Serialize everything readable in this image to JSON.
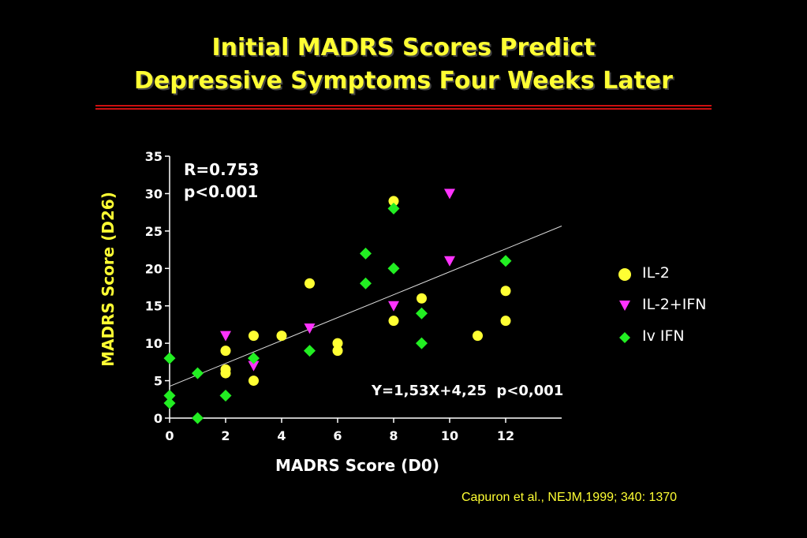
{
  "slide": {
    "title_line1": "Initial MADRS Scores Predict",
    "title_line2": "Depressive Symptoms Four Weeks Later",
    "stat_r": "R=0.753",
    "stat_p": "p<0.001",
    "equation": "Y=1,53X+4,25  p<0,001",
    "citation": "Capuron et al., NEJM,1999; 340: 1370",
    "title_color": "#ffff33",
    "rule_color": "#cc1111"
  },
  "chart_data": {
    "type": "scatter",
    "xlabel": "MADRS Score (D0)",
    "ylabel": "MADRS Score (D26)",
    "xlim": [
      0,
      14
    ],
    "ylim": [
      0,
      35
    ],
    "xticks": [
      "0",
      "2",
      "4",
      "6",
      "8",
      "10",
      "12"
    ],
    "yticks": [
      "0",
      "5",
      "10",
      "15",
      "20",
      "25",
      "30",
      "35"
    ],
    "grid": false,
    "legend_position": "right",
    "regression_line": {
      "slope": 1.53,
      "intercept": 4.25,
      "x_range": [
        0,
        14
      ]
    },
    "series": [
      {
        "name": "IL-2",
        "marker": "circle",
        "color": "#ffff33",
        "points": [
          [
            2,
            9
          ],
          [
            2,
            6.5
          ],
          [
            2,
            6
          ],
          [
            3,
            11
          ],
          [
            3,
            5
          ],
          [
            4,
            11
          ],
          [
            5,
            18
          ],
          [
            6,
            10
          ],
          [
            6,
            9
          ],
          [
            8,
            29
          ],
          [
            8,
            13
          ],
          [
            9,
            16
          ],
          [
            11,
            11
          ],
          [
            12,
            17
          ],
          [
            12,
            13
          ]
        ]
      },
      {
        "name": "IL-2+IFN",
        "marker": "triangle-down",
        "color": "#ff33ff",
        "points": [
          [
            2,
            11
          ],
          [
            3,
            7
          ],
          [
            5,
            12
          ],
          [
            8,
            15
          ],
          [
            10,
            30
          ],
          [
            10,
            21
          ]
        ]
      },
      {
        "name": "Iv IFN",
        "marker": "diamond",
        "color": "#22ee22",
        "points": [
          [
            0,
            8
          ],
          [
            0,
            3
          ],
          [
            0,
            2
          ],
          [
            1,
            6
          ],
          [
            1,
            0
          ],
          [
            2,
            3
          ],
          [
            3,
            8
          ],
          [
            5,
            9
          ],
          [
            7,
            22
          ],
          [
            7,
            18
          ],
          [
            8,
            28
          ],
          [
            8,
            20
          ],
          [
            9,
            14
          ],
          [
            9,
            10
          ],
          [
            12,
            21
          ]
        ]
      }
    ]
  }
}
